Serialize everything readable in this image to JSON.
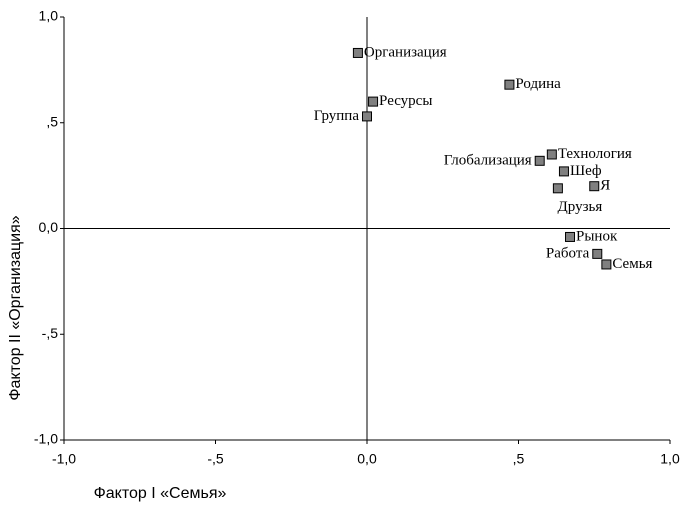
{
  "chart_data": {
    "type": "scatter",
    "x_label": "Фактор I «Семья»",
    "y_label": "Фактор II «Организация»",
    "labels": [
      "Организация",
      "Родина",
      "Ресурсы",
      "Группа",
      "Технология",
      "Глобализация",
      "Шеф",
      "Я",
      "Друзья",
      "Рынок",
      "Работа",
      "Семья"
    ],
    "x": [
      -0.03,
      0.47,
      0.02,
      0.0,
      0.61,
      0.57,
      0.65,
      0.75,
      0.63,
      0.67,
      0.76,
      0.79
    ],
    "y": [
      0.83,
      0.68,
      0.6,
      0.53,
      0.35,
      0.32,
      0.27,
      0.2,
      0.19,
      -0.04,
      -0.12,
      -0.17
    ],
    "color": "#808080",
    "xlim": [
      -1.0,
      1.0
    ],
    "ylim": [
      -1.0,
      1.0
    ],
    "xticks": [
      {
        "value": -1.0,
        "label": "-1,0"
      },
      {
        "value": -0.5,
        "label": "-,5"
      },
      {
        "value": 0.0,
        "label": "0,0"
      },
      {
        "value": 0.5,
        "label": ",5"
      },
      {
        "value": 1.0,
        "label": "1,0"
      }
    ],
    "yticks": [
      {
        "value": -1.0,
        "label": "-1,0"
      },
      {
        "value": -0.5,
        "label": "-,5"
      },
      {
        "value": 0.0,
        "label": "0,0"
      },
      {
        "value": 0.5,
        "label": ",5"
      },
      {
        "value": 1.0,
        "label": "1,0"
      }
    ]
  }
}
